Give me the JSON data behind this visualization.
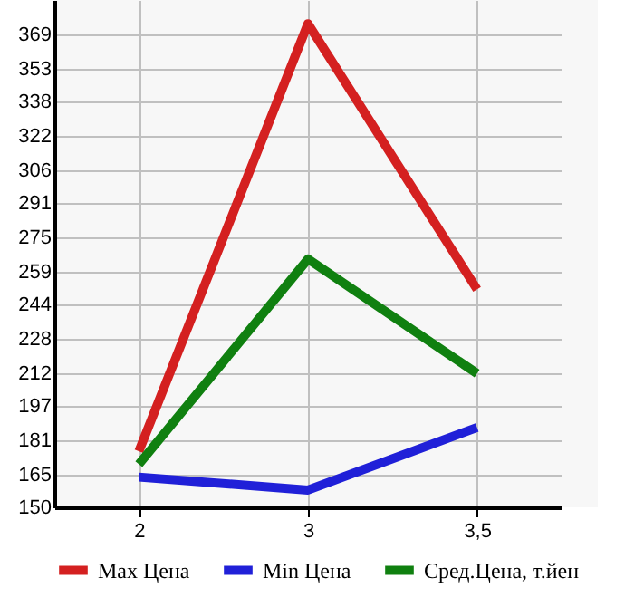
{
  "chart_data": {
    "type": "line",
    "categories": [
      "2",
      "3",
      "3,5"
    ],
    "series": [
      {
        "name": "Max Цена",
        "color": "#d42020",
        "values": [
          176,
          374,
          251
        ]
      },
      {
        "name": "Min Цена",
        "color": "#2020d8",
        "values": [
          164,
          158,
          187
        ]
      },
      {
        "name": "Сред.Цена, т.йен",
        "color": "#108010",
        "values": [
          170,
          265,
          212
        ]
      }
    ],
    "ylim": [
      150,
      385
    ],
    "yticks": [
      150,
      165,
      181,
      197,
      212,
      228,
      244,
      259,
      275,
      291,
      306,
      322,
      338,
      353,
      369
    ],
    "grid": true,
    "legend": "bottom",
    "marker": "none",
    "line_style": "solid"
  }
}
